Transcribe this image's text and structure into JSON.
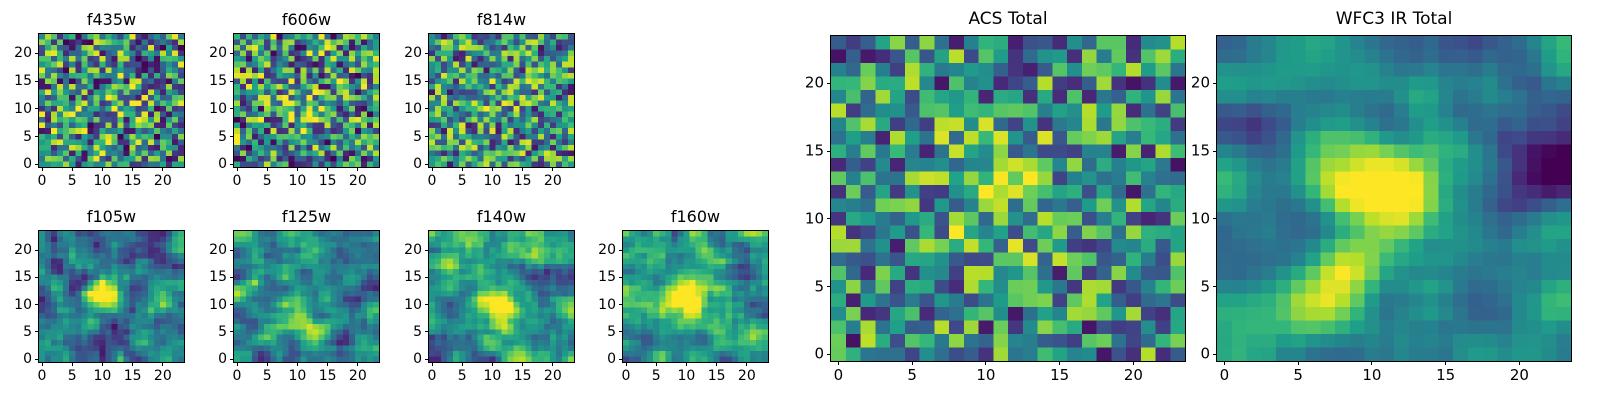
{
  "figure": {
    "background": "#ffffff",
    "text_color": "#000000",
    "border_color": "#000000"
  },
  "colors": {
    "viridis_stops": [
      "#440154",
      "#482878",
      "#3e4a89",
      "#31688e",
      "#26828e",
      "#1f9e89",
      "#35b779",
      "#6ece58",
      "#b5de2b",
      "#fde725"
    ]
  },
  "chart_data": [
    {
      "type": "heatmap",
      "title": "f435w",
      "grid": [
        24,
        24
      ],
      "x_range": [
        -0.5,
        23.5
      ],
      "y_range": [
        -0.5,
        23.5
      ],
      "x_ticks": [
        0,
        5,
        10,
        15,
        20
      ],
      "y_ticks": [
        0,
        5,
        10,
        15,
        20
      ],
      "colormap": "viridis",
      "gen": {
        "seed": 11,
        "smooth": 0,
        "bias": 0.0,
        "gain": 1.0,
        "blobs": [
          {
            "x": 13,
            "y": 11,
            "sigma": 2.5,
            "amp": 0.15
          }
        ]
      }
    },
    {
      "type": "heatmap",
      "title": "f606w",
      "grid": [
        24,
        24
      ],
      "x_range": [
        -0.5,
        23.5
      ],
      "y_range": [
        -0.5,
        23.5
      ],
      "x_ticks": [
        0,
        5,
        10,
        15,
        20
      ],
      "y_ticks": [
        0,
        5,
        10,
        15,
        20
      ],
      "colormap": "viridis",
      "gen": {
        "seed": 22,
        "smooth": 0,
        "bias": 0.0,
        "gain": 1.0,
        "blobs": [
          {
            "x": 11,
            "y": 10,
            "sigma": 2.5,
            "amp": 0.25
          }
        ]
      }
    },
    {
      "type": "heatmap",
      "title": "f814w",
      "grid": [
        24,
        24
      ],
      "x_range": [
        -0.5,
        23.5
      ],
      "y_range": [
        -0.5,
        23.5
      ],
      "x_ticks": [
        0,
        5,
        10,
        15,
        20
      ],
      "y_ticks": [
        0,
        5,
        10,
        15,
        20
      ],
      "colormap": "viridis",
      "gen": {
        "seed": 33,
        "smooth": 0,
        "bias": 0.05,
        "gain": 0.9,
        "blobs": [
          {
            "x": 11,
            "y": 11,
            "sigma": 2.5,
            "amp": 0.15
          }
        ]
      }
    },
    {
      "type": "heatmap",
      "title": "f105w",
      "grid": [
        24,
        24
      ],
      "x_range": [
        -0.5,
        23.5
      ],
      "y_range": [
        -0.5,
        23.5
      ],
      "x_ticks": [
        0,
        5,
        10,
        15,
        20
      ],
      "y_ticks": [
        0,
        5,
        10,
        15,
        20
      ],
      "colormap": "viridis",
      "gen": {
        "seed": 44,
        "smooth": 1,
        "bias": 0.05,
        "gain": 0.8,
        "blobs": [
          {
            "x": 10.5,
            "y": 11.5,
            "sigma": 1.7,
            "amp": 0.8
          }
        ]
      }
    },
    {
      "type": "heatmap",
      "title": "f125w",
      "grid": [
        24,
        24
      ],
      "x_range": [
        -0.5,
        23.5
      ],
      "y_range": [
        -0.5,
        23.5
      ],
      "x_ticks": [
        0,
        5,
        10,
        15,
        20
      ],
      "y_ticks": [
        0,
        5,
        10,
        15,
        20
      ],
      "colormap": "viridis",
      "gen": {
        "seed": 55,
        "smooth": 1,
        "bias": 0.1,
        "gain": 0.8,
        "blobs": [
          {
            "x": 10,
            "y": 7,
            "sigma": 2.5,
            "amp": 0.35
          }
        ]
      }
    },
    {
      "type": "heatmap",
      "title": "f140w",
      "grid": [
        24,
        24
      ],
      "x_range": [
        -0.5,
        23.5
      ],
      "y_range": [
        -0.5,
        23.5
      ],
      "x_ticks": [
        0,
        5,
        10,
        15,
        20
      ],
      "y_ticks": [
        0,
        5,
        10,
        15,
        20
      ],
      "colormap": "viridis",
      "gen": {
        "seed": 66,
        "smooth": 1,
        "bias": 0.1,
        "gain": 0.8,
        "blobs": [
          {
            "x": 11,
            "y": 10,
            "sigma": 2.2,
            "amp": 0.6
          },
          {
            "x": 20,
            "y": 14,
            "sigma": 2.5,
            "amp": -0.25
          }
        ]
      }
    },
    {
      "type": "heatmap",
      "title": "f160w",
      "grid": [
        24,
        24
      ],
      "x_range": [
        -0.5,
        23.5
      ],
      "y_range": [
        -0.5,
        23.5
      ],
      "x_ticks": [
        0,
        5,
        10,
        15,
        20
      ],
      "y_ticks": [
        0,
        5,
        10,
        15,
        20
      ],
      "colormap": "viridis",
      "gen": {
        "seed": 77,
        "smooth": 1,
        "bias": 0.2,
        "gain": 0.7,
        "blobs": [
          {
            "x": 10,
            "y": 11,
            "sigma": 2.5,
            "amp": 0.65
          },
          {
            "x": 21,
            "y": 15,
            "sigma": 3,
            "amp": -0.3
          }
        ]
      }
    },
    {
      "type": "heatmap",
      "title": "ACS Total",
      "grid": [
        24,
        24
      ],
      "x_range": [
        -0.5,
        23.5
      ],
      "y_range": [
        -0.5,
        23.5
      ],
      "x_ticks": [
        0,
        5,
        10,
        15,
        20
      ],
      "y_ticks": [
        0,
        5,
        10,
        15,
        20
      ],
      "colormap": "viridis",
      "gen": {
        "seed": 88,
        "smooth": 0,
        "bias": 0.05,
        "gain": 0.85,
        "blobs": [
          {
            "x": 11,
            "y": 12,
            "sigma": 3,
            "amp": 0.3
          }
        ]
      }
    },
    {
      "type": "heatmap",
      "title": "WFC3 IR Total",
      "grid": [
        24,
        24
      ],
      "x_range": [
        -0.5,
        23.5
      ],
      "y_range": [
        -0.5,
        23.5
      ],
      "x_ticks": [
        0,
        5,
        10,
        15,
        20
      ],
      "y_ticks": [
        0,
        5,
        10,
        15,
        20
      ],
      "colormap": "viridis",
      "gen": {
        "seed": 99,
        "smooth": 2,
        "bias": 0.15,
        "gain": 0.7,
        "blobs": [
          {
            "x": 11.5,
            "y": 11.5,
            "sigma": 2.3,
            "amp": 0.85
          },
          {
            "x": 21,
            "y": 13,
            "sigma": 3,
            "amp": -0.4
          },
          {
            "x": 6,
            "y": 4,
            "sigma": 2.5,
            "amp": 0.25
          }
        ]
      }
    }
  ]
}
